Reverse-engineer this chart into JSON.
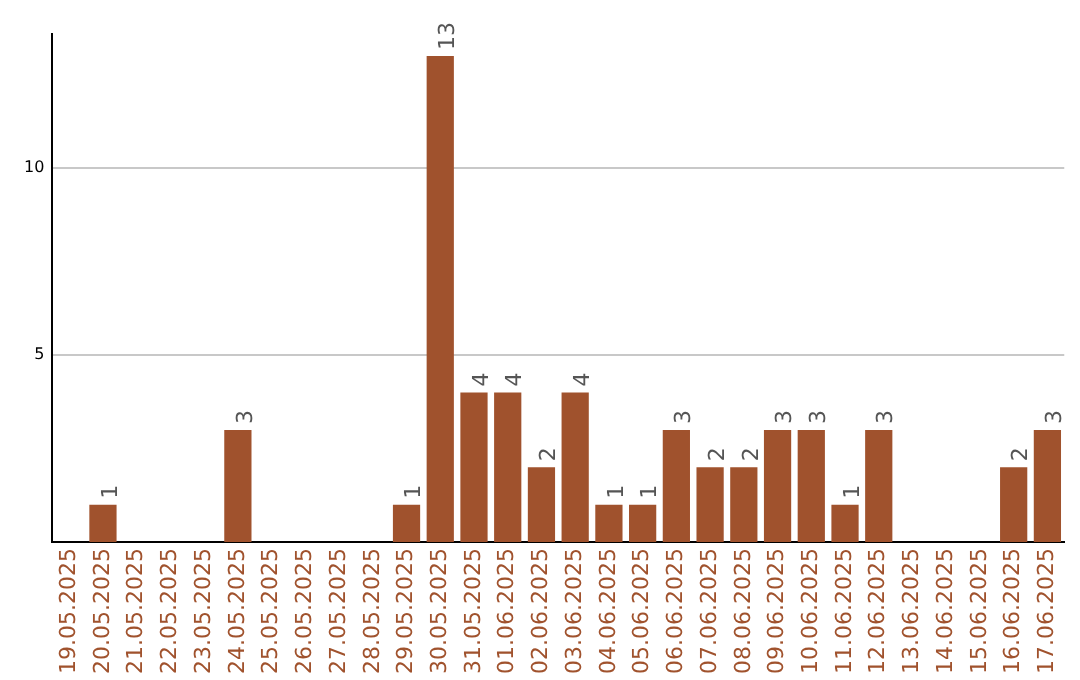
{
  "chart_data": {
    "type": "bar",
    "categories": [
      "19.05.2025",
      "20.05.2025",
      "21.05.2025",
      "22.05.2025",
      "23.05.2025",
      "24.05.2025",
      "25.05.2025",
      "26.05.2025",
      "27.05.2025",
      "28.05.2025",
      "29.05.2025",
      "30.05.2025",
      "31.05.2025",
      "01.06.2025",
      "02.06.2025",
      "03.06.2025",
      "04.06.2025",
      "05.06.2025",
      "06.06.2025",
      "07.06.2025",
      "08.06.2025",
      "09.06.2025",
      "10.06.2025",
      "11.06.2025",
      "12.06.2025",
      "13.06.2025",
      "14.06.2025",
      "15.06.2025",
      "16.06.2025",
      "17.06.2025"
    ],
    "values": [
      0,
      1,
      0,
      0,
      0,
      3,
      0,
      0,
      0,
      0,
      1,
      13,
      4,
      4,
      2,
      4,
      1,
      1,
      3,
      2,
      2,
      3,
      3,
      1,
      3,
      0,
      0,
      0,
      2,
      3
    ],
    "value_labels": [
      null,
      "1",
      null,
      null,
      null,
      "3",
      null,
      null,
      null,
      null,
      "1",
      "13",
      "4",
      "4",
      "2",
      "4",
      "1",
      "1",
      "3",
      "2",
      "2",
      "3",
      "3",
      "1",
      "3",
      null,
      null,
      null,
      "2",
      "3"
    ],
    "color": "#a0522d",
    "ylim": [
      0,
      13.6
    ],
    "yticks": [
      5,
      10
    ],
    "grid": "y",
    "legend": false
  }
}
